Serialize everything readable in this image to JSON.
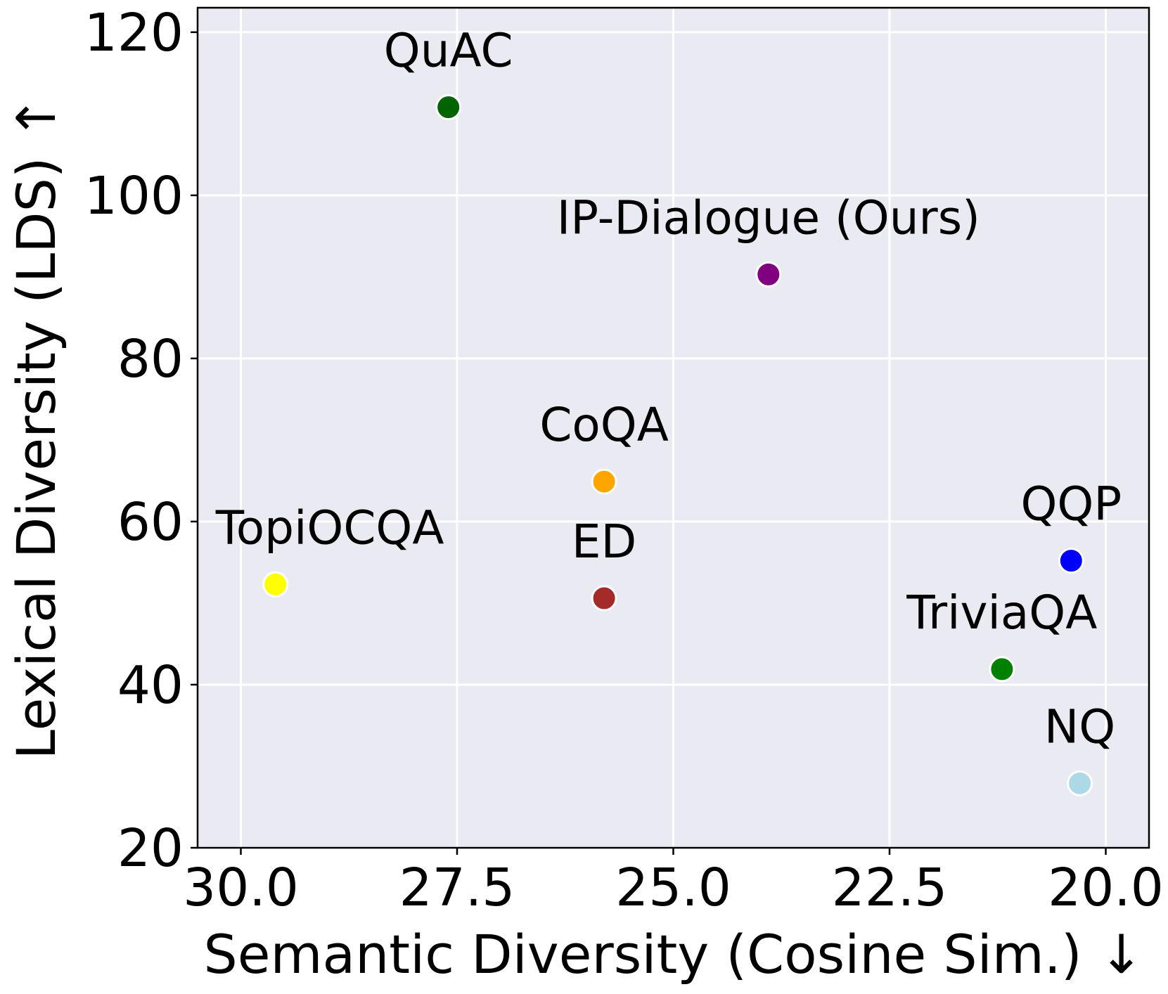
{
  "chart_data": {
    "type": "scatter",
    "title": "",
    "xlabel": "Semantic Diversity (Cosine Sim.) ↓",
    "ylabel": "Lexical Diversity (LDS) ↑",
    "x_inverted": true,
    "xlim": [
      30.5,
      19.5
    ],
    "ylim": [
      20,
      123
    ],
    "xticks": [
      30.0,
      27.5,
      25.0,
      22.5,
      20.0
    ],
    "xtick_labels": [
      "30.0",
      "27.5",
      "25.0",
      "22.5",
      "20.0"
    ],
    "yticks": [
      20,
      40,
      60,
      80,
      100,
      120
    ],
    "ytick_labels": [
      "20",
      "40",
      "60",
      "80",
      "100",
      "120"
    ],
    "grid": true,
    "background": "#eaeaf2",
    "points": [
      {
        "name": "QuAC",
        "x": 27.6,
        "y": 110.8,
        "color": "#006400",
        "label_pos": "above"
      },
      {
        "name": "IP-Dialogue (Ours)",
        "x": 23.9,
        "y": 90.3,
        "color": "#800080",
        "label_pos": "above"
      },
      {
        "name": "CoQA",
        "x": 25.8,
        "y": 64.9,
        "color": "#ffa500",
        "label_pos": "above"
      },
      {
        "name": "TopiOCQA",
        "x": 29.6,
        "y": 52.3,
        "color": "#ffff00",
        "label_pos": "above-right"
      },
      {
        "name": "ED",
        "x": 25.8,
        "y": 50.6,
        "color": "#a52a2a",
        "label_pos": "above"
      },
      {
        "name": "QQP",
        "x": 20.4,
        "y": 55.2,
        "color": "#0000ff",
        "label_pos": "above"
      },
      {
        "name": "TriviaQA",
        "x": 21.2,
        "y": 41.9,
        "color": "#008000",
        "label_pos": "above"
      },
      {
        "name": "NQ",
        "x": 20.3,
        "y": 27.9,
        "color": "#add8e6",
        "label_pos": "above"
      }
    ]
  }
}
